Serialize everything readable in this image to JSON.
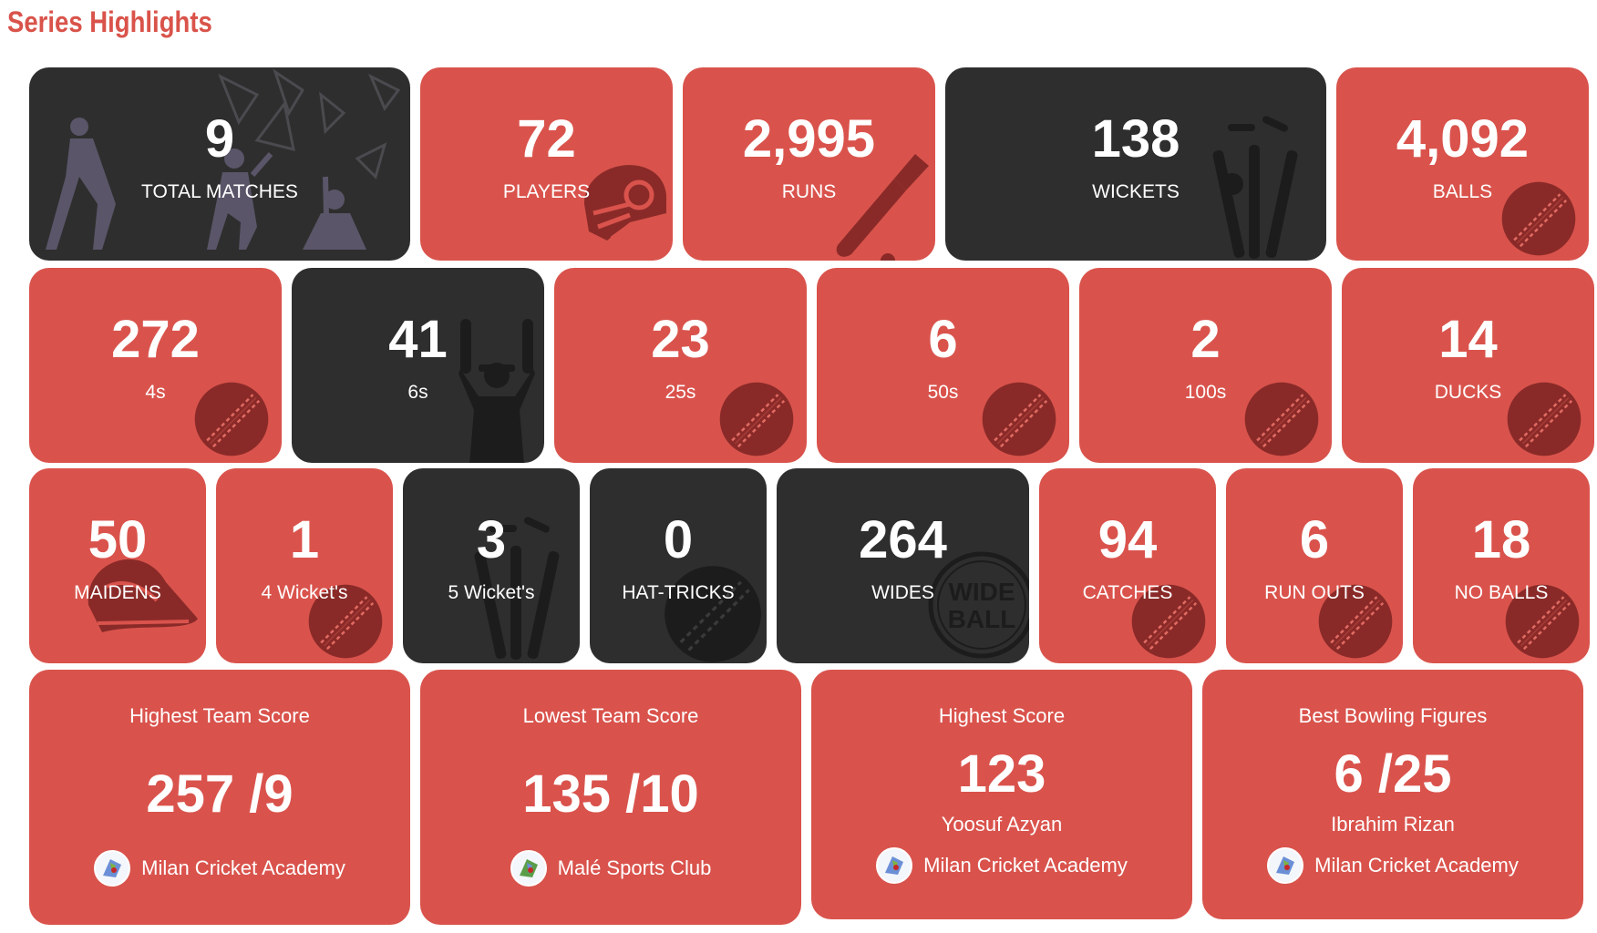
{
  "title": "Series Highlights",
  "colors": {
    "accent": "#d9534a",
    "card_red": "#d9534c",
    "card_dark": "#2e2e2e"
  },
  "stats": [
    {
      "value": "9",
      "label": "TOTAL MATCHES",
      "icon": "cricket-players-icon"
    },
    {
      "value": "72",
      "label": "PLAYERS",
      "icon": "helmet-icon"
    },
    {
      "value": "2,995",
      "label": "RUNS",
      "icon": "bat-icon"
    },
    {
      "value": "138",
      "label": "WICKETS",
      "icon": "stumps-icon"
    },
    {
      "value": "4,092",
      "label": "BALLS",
      "icon": "ball-icon"
    },
    {
      "value": "272",
      "label": "4s",
      "icon": "ball-icon"
    },
    {
      "value": "41",
      "label": "6s",
      "icon": "umpire-icon"
    },
    {
      "value": "23",
      "label": "25s",
      "icon": "ball-icon"
    },
    {
      "value": "6",
      "label": "50s",
      "icon": "ball-icon"
    },
    {
      "value": "2",
      "label": "100s",
      "icon": "ball-icon"
    },
    {
      "value": "14",
      "label": "DUCKS",
      "icon": "ball-icon"
    },
    {
      "value": "50",
      "label": "MAIDENS",
      "icon": "cap-icon"
    },
    {
      "value": "1",
      "label": "4 Wicket's",
      "icon": "ball-icon"
    },
    {
      "value": "3",
      "label": "5 Wicket's",
      "icon": "stumps-icon"
    },
    {
      "value": "0",
      "label": "HAT-TRICKS",
      "icon": "ball-icon"
    },
    {
      "value": "264",
      "label": "WIDES",
      "icon": "wide-ball-icon"
    },
    {
      "value": "94",
      "label": "CATCHES",
      "icon": "ball-icon"
    },
    {
      "value": "6",
      "label": "RUN OUTS",
      "icon": "ball-icon"
    },
    {
      "value": "18",
      "label": "NO BALLS",
      "icon": "ball-icon"
    }
  ],
  "wide_ball_text": [
    "WIDE",
    "BALL"
  ],
  "highlights": [
    {
      "caption": "Highest Team Score",
      "score": "257 /9",
      "team": "Milan Cricket Academy"
    },
    {
      "caption": "Lowest Team Score",
      "score": "135 /10",
      "team": "Malé Sports Club"
    },
    {
      "caption": "Highest Score",
      "score": "123",
      "player": "Yoosuf Azyan",
      "team": "Milan Cricket Academy"
    },
    {
      "caption": "Best Bowling Figures",
      "score": "6 /25",
      "player": "Ibrahim Rizan",
      "team": "Milan Cricket Academy"
    }
  ]
}
